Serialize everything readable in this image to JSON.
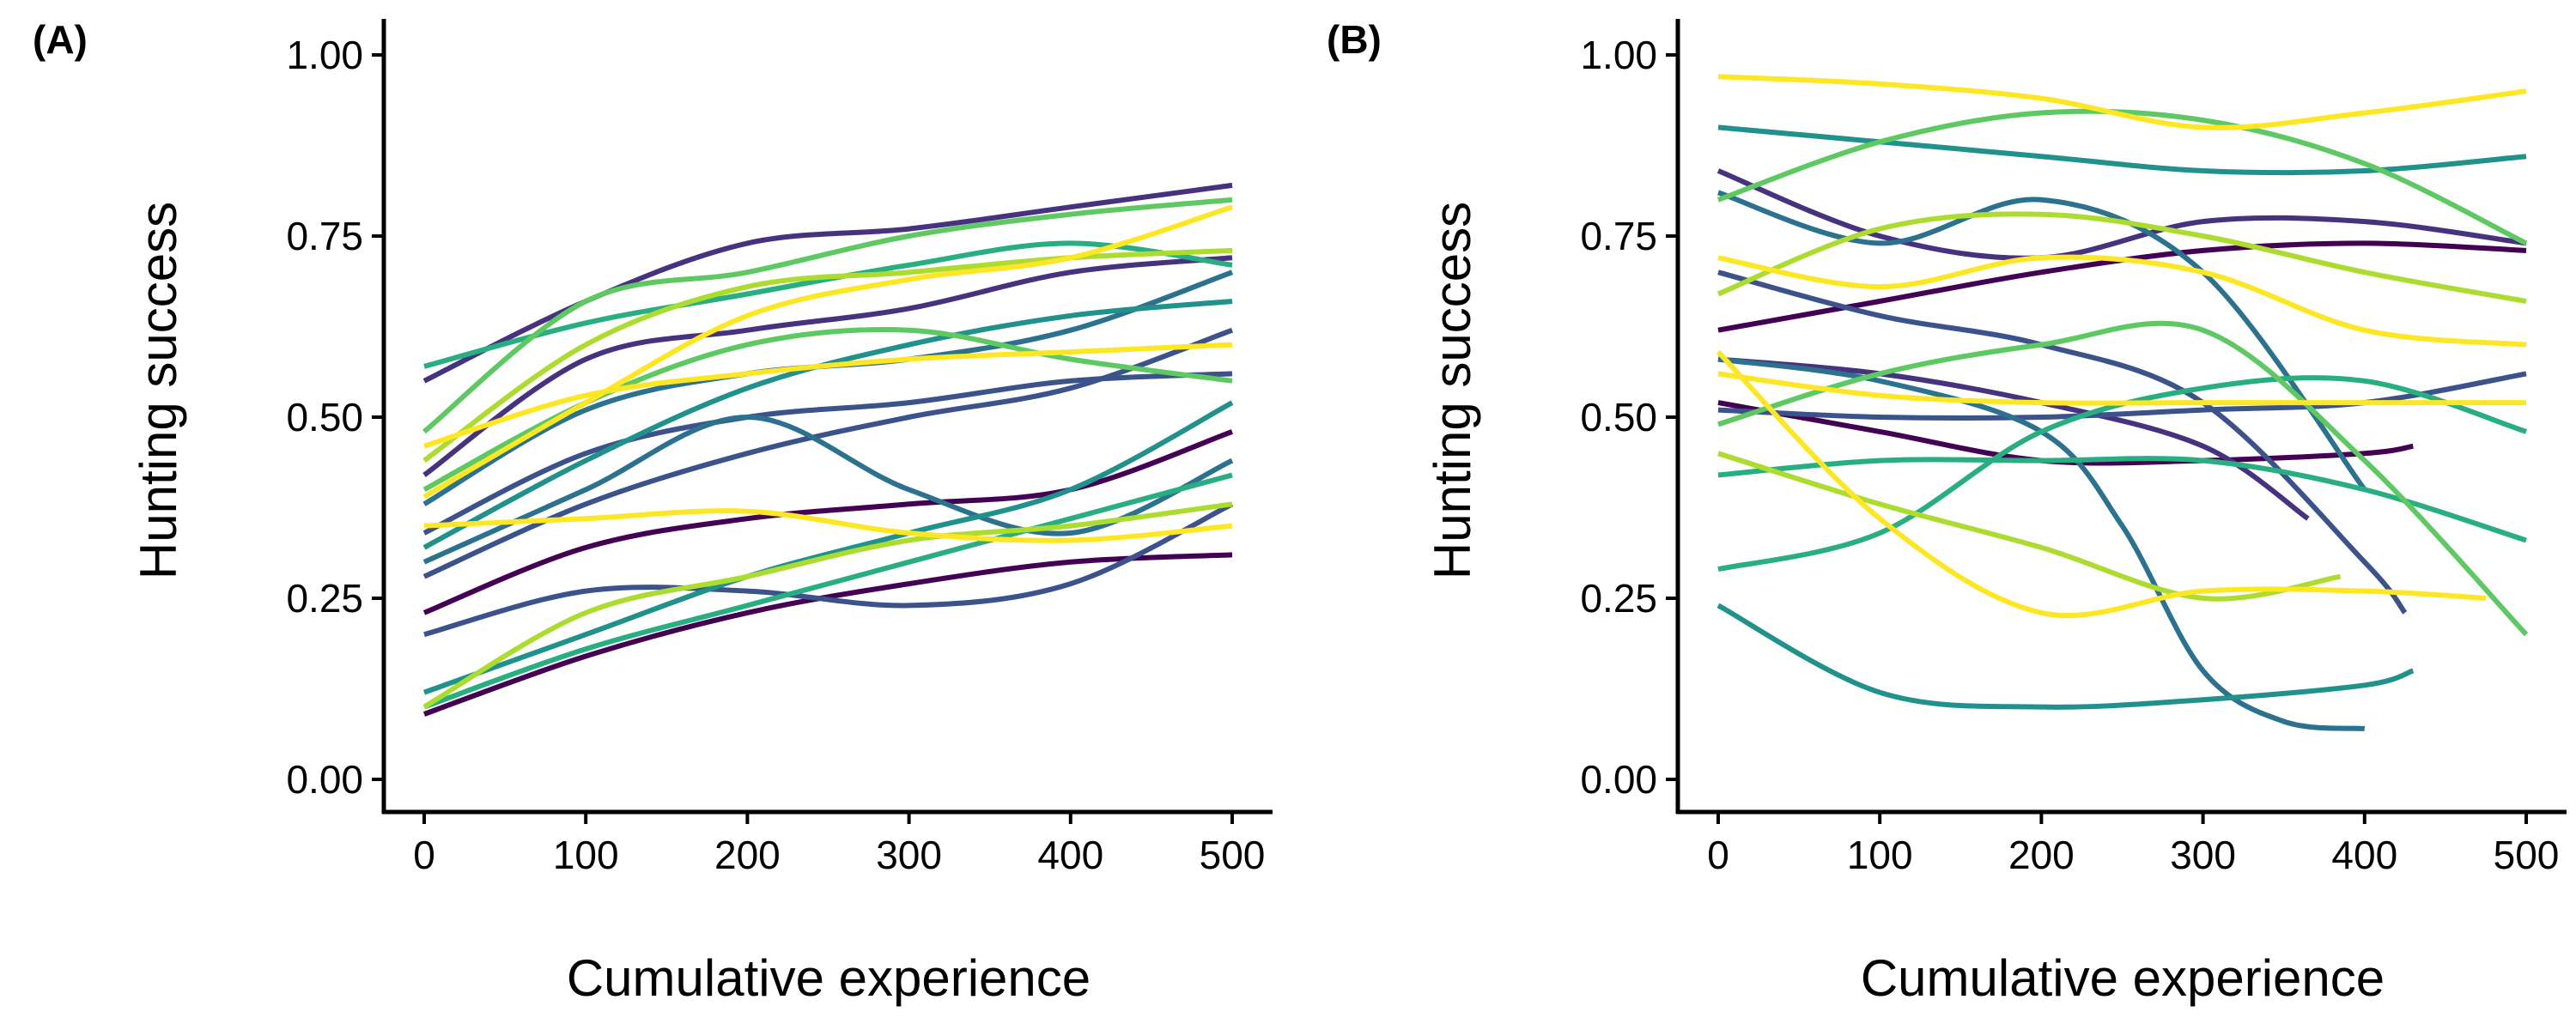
{
  "chart_data": [
    {
      "panel_label": "(A)",
      "type": "line",
      "xlabel": "Cumulative experience",
      "ylabel": "Hunting success",
      "xlim": [
        0,
        500
      ],
      "ylim": [
        0,
        1
      ],
      "xticks": [
        0,
        100,
        200,
        300,
        400,
        500
      ],
      "yticks": [
        0,
        0.25,
        0.5,
        0.75,
        1
      ],
      "xtick_labels": [
        "0",
        "100",
        "200",
        "300",
        "400",
        "500"
      ],
      "ytick_labels": [
        "0.00",
        "0.25",
        "0.50",
        "0.75",
        "1.00"
      ],
      "grid": false,
      "legend": "none",
      "colormap": "viridis",
      "series": [
        {
          "color": "#440154",
          "x": [
            0,
            100,
            200,
            300,
            400,
            500
          ],
          "y": [
            0.23,
            0.32,
            0.36,
            0.38,
            0.4,
            0.48
          ]
        },
        {
          "color": "#440154",
          "x": [
            0,
            100,
            200,
            300,
            400,
            500
          ],
          "y": [
            0.09,
            0.17,
            0.23,
            0.27,
            0.3,
            0.31
          ]
        },
        {
          "color": "#46327e",
          "x": [
            0,
            100,
            200,
            300,
            400,
            500
          ],
          "y": [
            0.55,
            0.66,
            0.74,
            0.76,
            0.79,
            0.82
          ]
        },
        {
          "color": "#46327e",
          "x": [
            0,
            100,
            200,
            300,
            400,
            500
          ],
          "y": [
            0.42,
            0.58,
            0.62,
            0.65,
            0.7,
            0.72
          ]
        },
        {
          "color": "#3b528b",
          "x": [
            0,
            100,
            200,
            300,
            400,
            500
          ],
          "y": [
            0.34,
            0.45,
            0.5,
            0.52,
            0.55,
            0.56
          ]
        },
        {
          "color": "#3b528b",
          "x": [
            0,
            100,
            200,
            300,
            400,
            500
          ],
          "y": [
            0.2,
            0.26,
            0.26,
            0.24,
            0.27,
            0.38
          ]
        },
        {
          "color": "#3b528b",
          "x": [
            0,
            100,
            200,
            300,
            400,
            500
          ],
          "y": [
            0.28,
            0.38,
            0.45,
            0.5,
            0.54,
            0.62
          ]
        },
        {
          "color": "#2c728e",
          "x": [
            0,
            100,
            200,
            300,
            400,
            500
          ],
          "y": [
            0.38,
            0.51,
            0.56,
            0.58,
            0.62,
            0.7
          ]
        },
        {
          "color": "#2c728e",
          "x": [
            0,
            100,
            200,
            300,
            400,
            500
          ],
          "y": [
            0.3,
            0.4,
            0.5,
            0.4,
            0.34,
            0.44
          ]
        },
        {
          "color": "#21918c",
          "x": [
            0,
            100,
            200,
            300,
            400,
            500
          ],
          "y": [
            0.32,
            0.44,
            0.54,
            0.6,
            0.64,
            0.66
          ]
        },
        {
          "color": "#21918c",
          "x": [
            0,
            100,
            200,
            300,
            400,
            500
          ],
          "y": [
            0.12,
            0.2,
            0.28,
            0.34,
            0.4,
            0.52
          ]
        },
        {
          "color": "#28ae80",
          "x": [
            0,
            100,
            200,
            300,
            400,
            500
          ],
          "y": [
            0.57,
            0.63,
            0.67,
            0.71,
            0.74,
            0.71
          ]
        },
        {
          "color": "#28ae80",
          "x": [
            0,
            100,
            200,
            300,
            400,
            500
          ],
          "y": [
            0.1,
            0.18,
            0.24,
            0.3,
            0.36,
            0.42
          ]
        },
        {
          "color": "#5ec962",
          "x": [
            0,
            100,
            200,
            300,
            400,
            500
          ],
          "y": [
            0.48,
            0.66,
            0.7,
            0.75,
            0.78,
            0.8
          ]
        },
        {
          "color": "#5ec962",
          "x": [
            0,
            100,
            200,
            300,
            400,
            500
          ],
          "y": [
            0.4,
            0.52,
            0.6,
            0.62,
            0.58,
            0.55
          ]
        },
        {
          "color": "#addc30",
          "x": [
            0,
            100,
            200,
            300,
            400,
            500
          ],
          "y": [
            0.44,
            0.6,
            0.68,
            0.7,
            0.72,
            0.73
          ]
        },
        {
          "color": "#addc30",
          "x": [
            0,
            100,
            200,
            300,
            400,
            500
          ],
          "y": [
            0.1,
            0.23,
            0.28,
            0.33,
            0.35,
            0.38
          ]
        },
        {
          "color": "#fde725",
          "x": [
            0,
            100,
            200,
            300,
            400,
            500
          ],
          "y": [
            0.46,
            0.53,
            0.56,
            0.58,
            0.59,
            0.6
          ]
        },
        {
          "color": "#fde725",
          "x": [
            0,
            100,
            200,
            300,
            400,
            500
          ],
          "y": [
            0.35,
            0.36,
            0.37,
            0.34,
            0.33,
            0.35
          ]
        },
        {
          "color": "#fde725",
          "x": [
            0,
            100,
            200,
            300,
            400,
            500
          ],
          "y": [
            0.39,
            0.52,
            0.64,
            0.69,
            0.72,
            0.79
          ]
        }
      ]
    },
    {
      "panel_label": "(B)",
      "type": "line",
      "xlabel": "Cumulative experience",
      "ylabel": "Hunting success",
      "xlim": [
        0,
        500
      ],
      "ylim": [
        0,
        1
      ],
      "xticks": [
        0,
        100,
        200,
        300,
        400,
        500
      ],
      "yticks": [
        0,
        0.25,
        0.5,
        0.75,
        1
      ],
      "xtick_labels": [
        "0",
        "100",
        "200",
        "300",
        "400",
        "500"
      ],
      "ytick_labels": [
        "0.00",
        "0.25",
        "0.50",
        "0.75",
        "1.00"
      ],
      "grid": false,
      "legend": "none",
      "colormap": "viridis",
      "series": [
        {
          "color": "#440154",
          "x": [
            0,
            100,
            200,
            300,
            400,
            430
          ],
          "y": [
            0.52,
            0.48,
            0.44,
            0.44,
            0.45,
            0.46
          ]
        },
        {
          "color": "#440154",
          "x": [
            0,
            100,
            200,
            300,
            400,
            500
          ],
          "y": [
            0.62,
            0.66,
            0.7,
            0.73,
            0.74,
            0.73
          ]
        },
        {
          "color": "#46327e",
          "x": [
            0,
            100,
            200,
            300,
            400,
            500
          ],
          "y": [
            0.84,
            0.75,
            0.72,
            0.77,
            0.77,
            0.74
          ]
        },
        {
          "color": "#46327e",
          "x": [
            0,
            100,
            200,
            300,
            365
          ],
          "y": [
            0.58,
            0.56,
            0.52,
            0.46,
            0.36
          ]
        },
        {
          "color": "#3b528b",
          "x": [
            0,
            100,
            200,
            300,
            400,
            425
          ],
          "y": [
            0.7,
            0.64,
            0.6,
            0.52,
            0.3,
            0.23
          ]
        },
        {
          "color": "#3b528b",
          "x": [
            0,
            100,
            200,
            300,
            400,
            500
          ],
          "y": [
            0.51,
            0.5,
            0.5,
            0.51,
            0.52,
            0.56
          ]
        },
        {
          "color": "#2c728e",
          "x": [
            0,
            100,
            200,
            300,
            400
          ],
          "y": [
            0.81,
            0.74,
            0.8,
            0.7,
            0.4
          ]
        },
        {
          "color": "#2c728e",
          "x": [
            0,
            100,
            200,
            250,
            300,
            350,
            400
          ],
          "y": [
            0.58,
            0.55,
            0.48,
            0.35,
            0.15,
            0.08,
            0.07
          ]
        },
        {
          "color": "#21918c",
          "x": [
            0,
            100,
            200,
            300,
            400,
            430
          ],
          "y": [
            0.24,
            0.12,
            0.1,
            0.11,
            0.13,
            0.15
          ]
        },
        {
          "color": "#21918c",
          "x": [
            0,
            100,
            200,
            300,
            400,
            500
          ],
          "y": [
            0.9,
            0.88,
            0.86,
            0.84,
            0.84,
            0.86
          ]
        },
        {
          "color": "#28ae80",
          "x": [
            0,
            100,
            200,
            300,
            400,
            500
          ],
          "y": [
            0.42,
            0.44,
            0.44,
            0.44,
            0.4,
            0.33
          ]
        },
        {
          "color": "#28ae80",
          "x": [
            0,
            100,
            200,
            300,
            400,
            500
          ],
          "y": [
            0.29,
            0.34,
            0.48,
            0.54,
            0.55,
            0.48
          ]
        },
        {
          "color": "#5ec962",
          "x": [
            0,
            100,
            200,
            300,
            400,
            500
          ],
          "y": [
            0.8,
            0.88,
            0.92,
            0.91,
            0.85,
            0.74
          ]
        },
        {
          "color": "#5ec962",
          "x": [
            0,
            100,
            200,
            300,
            400,
            500
          ],
          "y": [
            0.49,
            0.56,
            0.6,
            0.62,
            0.44,
            0.2
          ]
        },
        {
          "color": "#addc30",
          "x": [
            0,
            100,
            200,
            300,
            385
          ],
          "y": [
            0.45,
            0.38,
            0.32,
            0.25,
            0.28
          ]
        },
        {
          "color": "#addc30",
          "x": [
            0,
            100,
            200,
            300,
            400,
            500
          ],
          "y": [
            0.67,
            0.76,
            0.78,
            0.75,
            0.7,
            0.66
          ]
        },
        {
          "color": "#fde725",
          "x": [
            0,
            100,
            200,
            300,
            400,
            500
          ],
          "y": [
            0.97,
            0.96,
            0.94,
            0.9,
            0.92,
            0.95
          ]
        },
        {
          "color": "#fde725",
          "x": [
            0,
            100,
            200,
            300,
            400,
            475
          ],
          "y": [
            0.59,
            0.36,
            0.23,
            0.26,
            0.26,
            0.25
          ]
        },
        {
          "color": "#fde725",
          "x": [
            0,
            100,
            200,
            300,
            400,
            500
          ],
          "y": [
            0.72,
            0.68,
            0.72,
            0.7,
            0.62,
            0.6
          ]
        },
        {
          "color": "#fde725",
          "x": [
            0,
            100,
            200,
            300,
            400,
            500
          ],
          "y": [
            0.56,
            0.53,
            0.52,
            0.52,
            0.52,
            0.52
          ]
        }
      ]
    }
  ]
}
